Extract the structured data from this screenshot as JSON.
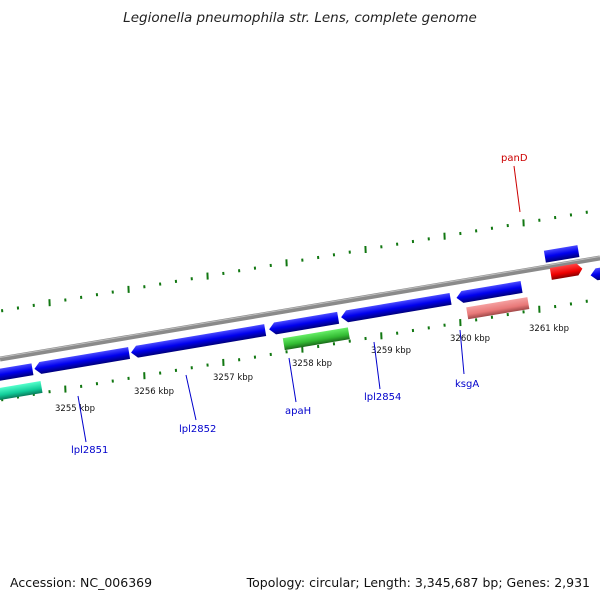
{
  "title": "Legionella pneumophila str. Lens, complete genome",
  "footer": {
    "accession": "Accession: NC_006369",
    "summary": "Topology: circular; Length: 3,345,687 bp; Genes: 2,931"
  },
  "ticks": [
    "3255 kbp",
    "3256 kbp",
    "3257 kbp",
    "3258 kbp",
    "3259 kbp",
    "3260 kbp",
    "3261 kbp"
  ],
  "genes": [
    {
      "name": "lpl2851",
      "color": "#0000cc"
    },
    {
      "name": "lpl2852",
      "color": "#0000cc"
    },
    {
      "name": "apaH",
      "color": "#0000cc"
    },
    {
      "name": "lpl2854",
      "color": "#0000cc"
    },
    {
      "name": "ksgA",
      "color": "#0000cc"
    },
    {
      "name": "panD",
      "color": "#cc0000"
    }
  ],
  "colors": {
    "forward_gene": "#0a0af0",
    "rna_gene_green": "#33cc33",
    "rna_gene_cyan": "#22ddaa",
    "ksgA_box": "#ee8080",
    "panD_box": "#ee0000",
    "backbone": "#7a7a7a",
    "tick": "#117711"
  }
}
